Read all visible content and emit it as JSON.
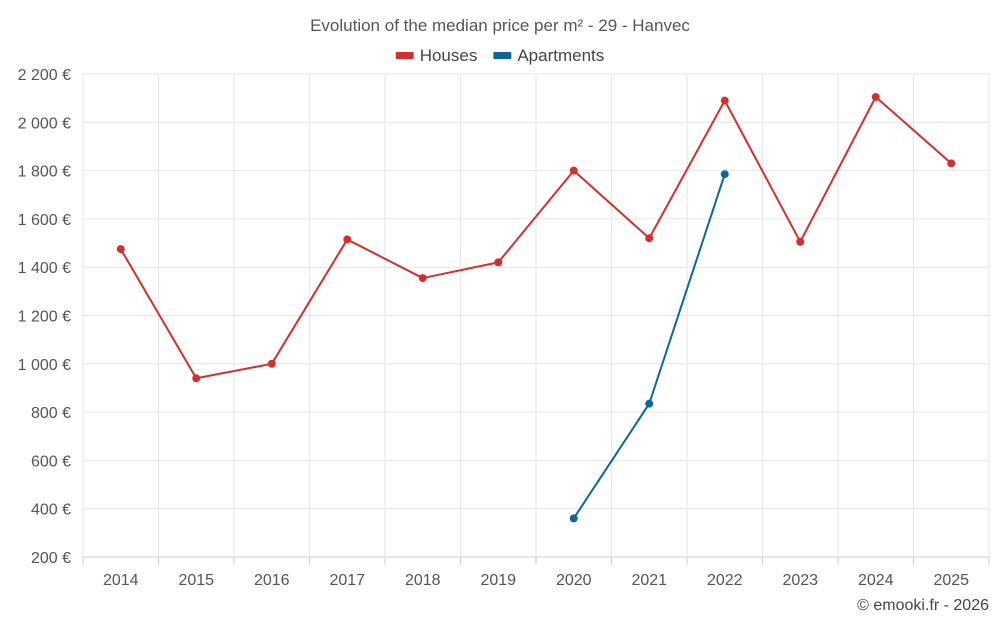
{
  "chart_data": {
    "type": "line",
    "title": "Evolution of the median price per m² - 29 - Hanvec",
    "xlabel": "",
    "ylabel": "",
    "categories": [
      "2014",
      "2015",
      "2016",
      "2017",
      "2018",
      "2019",
      "2020",
      "2021",
      "2022",
      "2023",
      "2024",
      "2025"
    ],
    "ylim": [
      200,
      2200
    ],
    "y_ticks": [
      200,
      400,
      600,
      800,
      1000,
      1200,
      1400,
      1600,
      1800,
      2000,
      2200
    ],
    "y_tick_labels": [
      "200 €",
      "400 €",
      "600 €",
      "800 €",
      "1 000 €",
      "1 200 €",
      "1 400 €",
      "1 600 €",
      "1 800 €",
      "2 000 €",
      "2 200 €"
    ],
    "grid": true,
    "legend_position": "top-center",
    "series": [
      {
        "name": "Houses",
        "color": "#d32f2f",
        "values": [
          1475,
          940,
          1000,
          1515,
          1355,
          1420,
          1800,
          1520,
          2090,
          1505,
          2105,
          1830
        ]
      },
      {
        "name": "Apartments",
        "color": "#0d6697",
        "values": [
          null,
          null,
          null,
          null,
          null,
          null,
          360,
          835,
          1785,
          null,
          null,
          null
        ]
      }
    ]
  },
  "credit": "© emooki.fr - 2026"
}
